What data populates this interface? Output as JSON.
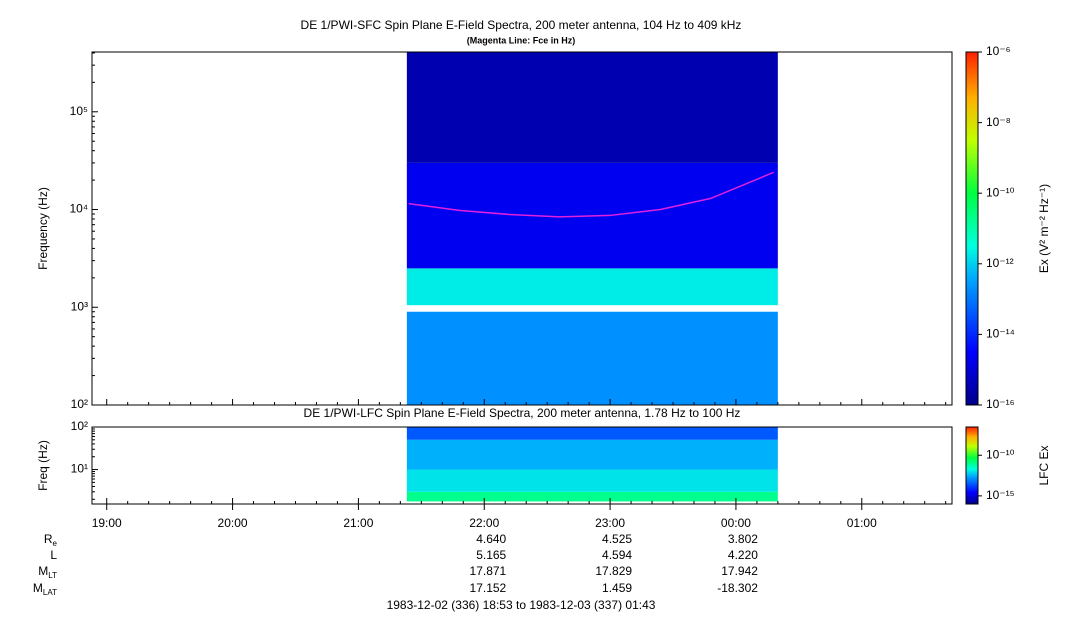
{
  "chart_data": [
    {
      "type": "spectrogram",
      "title": "DE 1/PWI-SFC  Spin Plane E-Field Spectra, 200 meter antenna, 104 Hz to 409 kHz",
      "subtitle": "(Magenta Line: Fce in Hz)",
      "y_label": "Frequency (Hz)",
      "log_y": true,
      "xlim": [
        18.883,
        25.717
      ],
      "ylim": [
        100,
        409000
      ],
      "yticks": [
        {
          "value": 100,
          "label": "10²"
        },
        {
          "value": 1000,
          "label": "10³"
        },
        {
          "value": 10000,
          "label": "10⁴"
        },
        {
          "value": 100000,
          "label": "10⁵"
        }
      ],
      "bands": [
        {
          "tlim": [
            21.385,
            24.333
          ],
          "flim": [
            100,
            900
          ],
          "value": 2e-13
        },
        {
          "tlim": [
            21.385,
            24.333
          ],
          "flim": [
            1050,
            2500
          ],
          "value": 2e-12
        },
        {
          "tlim": [
            21.385,
            24.333
          ],
          "flim": [
            2500,
            30000
          ],
          "value": 2e-15
        },
        {
          "tlim": [
            21.385,
            24.333
          ],
          "flim": [
            30000,
            409000
          ],
          "value": 3e-16
        }
      ],
      "lines": [
        {
          "color": "#e020e0",
          "x": [
            21.4,
            21.8,
            22.2,
            22.6,
            23.0,
            23.4,
            23.8,
            24.3
          ],
          "values": [
            11500,
            9800,
            8900,
            8400,
            8700,
            10000,
            13000,
            24000
          ]
        }
      ],
      "colorbar": {
        "label": "Ex (V² m⁻² Hz⁻¹)",
        "zlim": [
          1e-16,
          1e-06
        ],
        "log": true,
        "ticks": [
          {
            "value": 1e-06,
            "label": "10⁻⁶"
          },
          {
            "value": 1e-08,
            "label": "10⁻⁸"
          },
          {
            "value": 1e-10,
            "label": "10⁻¹⁰"
          },
          {
            "value": 1e-12,
            "label": "10⁻¹²"
          },
          {
            "value": 1e-14,
            "label": "10⁻¹⁴"
          },
          {
            "value": 1e-16,
            "label": "10⁻¹⁶"
          }
        ]
      }
    },
    {
      "type": "spectrogram",
      "title": "DE 1/PWI-LFC  Spin Plane E-Field Spectra, 200 meter antenna, 1.78 Hz to 100 Hz",
      "y_label": "Freq (Hz)",
      "log_y": true,
      "xlim": [
        18.883,
        25.717
      ],
      "ylim": [
        1.55,
        100
      ],
      "yticks": [
        {
          "value": 10,
          "label": "10¹"
        },
        {
          "value": 100,
          "label": "10²"
        }
      ],
      "xticks": [
        {
          "value": 19,
          "label": "19:00"
        },
        {
          "value": 20,
          "label": "20:00"
        },
        {
          "value": 21,
          "label": "21:00"
        },
        {
          "value": 22,
          "label": "22:00"
        },
        {
          "value": 23,
          "label": "23:00"
        },
        {
          "value": 24,
          "label": "00:00"
        },
        {
          "value": 25,
          "label": "01:00"
        }
      ],
      "bands": [
        {
          "tlim": [
            21.385,
            24.333
          ],
          "flim": [
            1.78,
            3
          ],
          "value": 1e-11
        },
        {
          "tlim": [
            21.385,
            24.333
          ],
          "flim": [
            3,
            10
          ],
          "value": 1e-12
        },
        {
          "tlim": [
            21.385,
            24.333
          ],
          "flim": [
            10,
            50
          ],
          "value": 3e-13
        },
        {
          "tlim": [
            21.385,
            24.333
          ],
          "flim": [
            50,
            100
          ],
          "value": 3e-14
        }
      ],
      "colorbar": {
        "label": "LFC Ex",
        "zlim": [
          1e-16,
          3e-07
        ],
        "log": true,
        "ticks": [
          {
            "value": 1e-10,
            "label": "10⁻¹⁰"
          },
          {
            "value": 1e-15,
            "label": "10⁻¹⁵"
          }
        ]
      }
    }
  ],
  "ephemeris": {
    "x": [
      22,
      23,
      24
    ],
    "rows": [
      {
        "label": "R",
        "subscript": "e",
        "values": [
          "4.640",
          "4.525",
          "3.802"
        ]
      },
      {
        "label": "L",
        "subscript": "",
        "values": [
          "5.165",
          "4.594",
          "4.220"
        ]
      },
      {
        "label": "M",
        "subscript": "LT",
        "values": [
          "17.871",
          "17.829",
          "17.942"
        ]
      },
      {
        "label": "M",
        "subscript": "LAT",
        "values": [
          "17.152",
          "1.459",
          "-18.302"
        ]
      }
    ]
  },
  "footer": "1983-12-02 (336) 18:53 to 1983-12-03 (337) 01:43"
}
